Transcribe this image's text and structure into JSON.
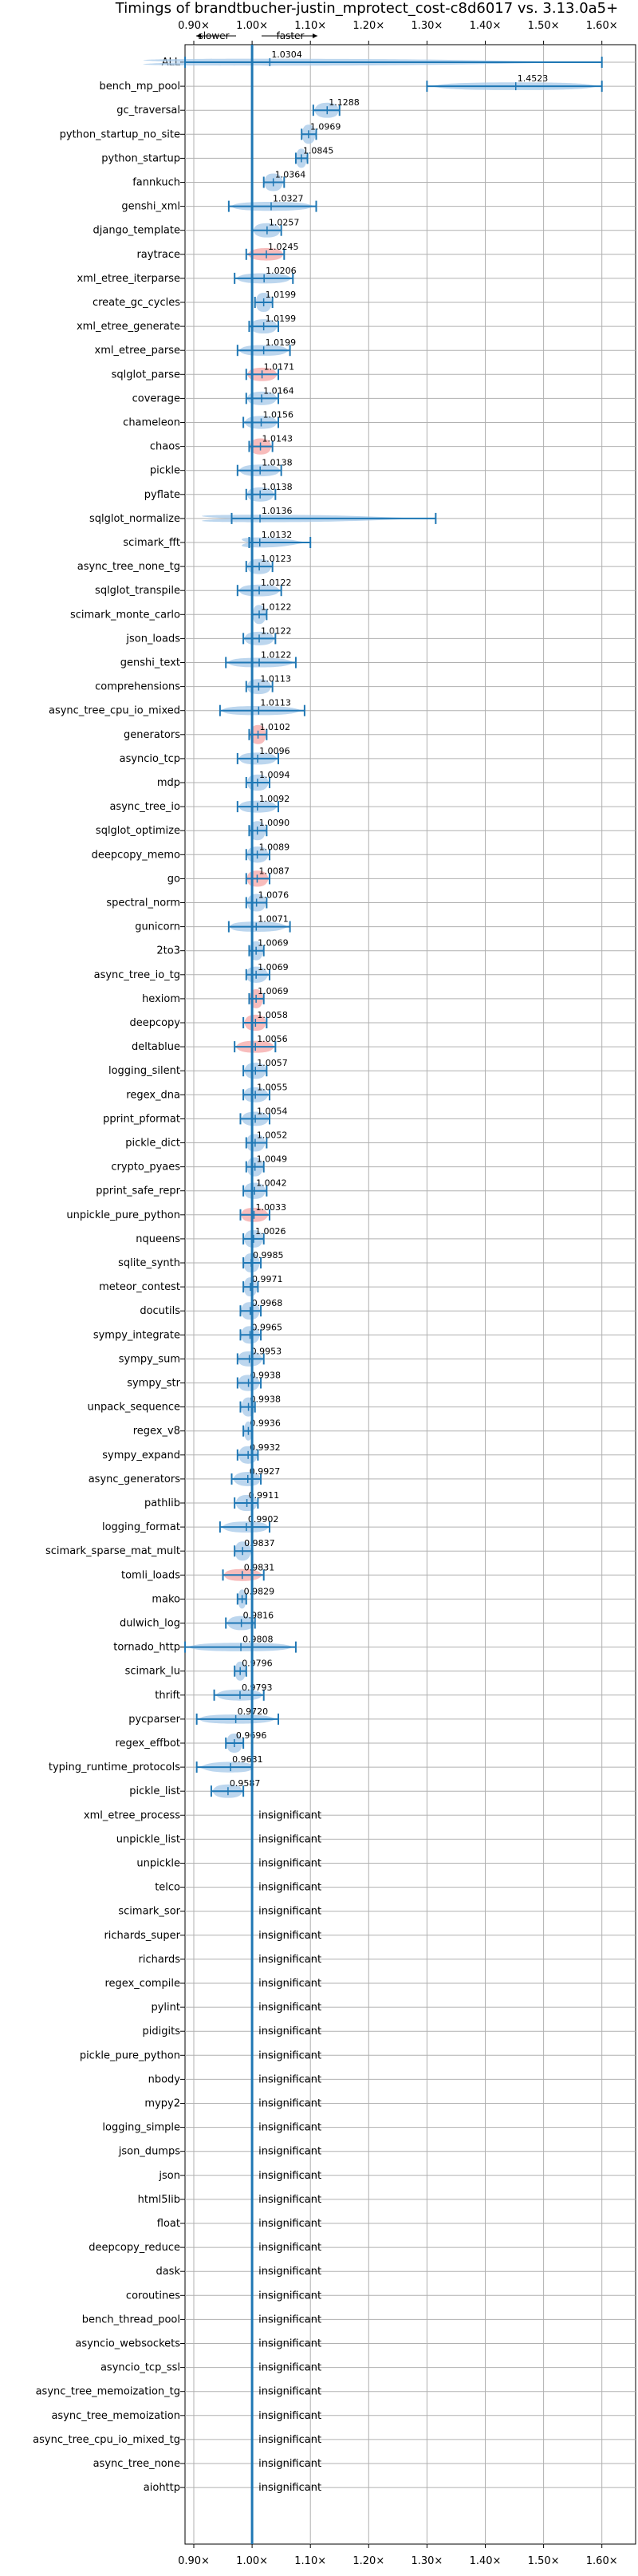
{
  "chart_data": {
    "type": "violin",
    "title": "Timings of brandtbucher-justin_mprotect_cost-c8d6017 vs. 3.13.0a5+",
    "direction_labels": {
      "slower": "slower",
      "faster": "faster"
    },
    "x_ticks": [
      {
        "value": 0.9,
        "label": "0.90×"
      },
      {
        "value": 1.0,
        "label": "1.00×"
      },
      {
        "value": 1.1,
        "label": "1.10×"
      },
      {
        "value": 1.2,
        "label": "1.20×"
      },
      {
        "value": 1.3,
        "label": "1.30×"
      },
      {
        "value": 1.4,
        "label": "1.40×"
      },
      {
        "value": 1.5,
        "label": "1.50×"
      },
      {
        "value": 1.6,
        "label": "1.60×"
      }
    ],
    "xlim": [
      0.88,
      1.62
    ],
    "reference_line": 1.0,
    "grid": true,
    "insignificant_label": "insignificant",
    "colors": {
      "line": "#1f77b4",
      "violin": "#a6c8e8",
      "violin_slower": "#f4a6a6",
      "grid": "#b0b0b0"
    },
    "benchmarks": [
      {
        "name": "ALL",
        "value": 1.0304,
        "label": "1.0304",
        "min": 0.885,
        "max": 1.6,
        "color": "blue"
      },
      {
        "name": "bench_mp_pool",
        "value": 1.4523,
        "label": "1.4523",
        "min": 1.3,
        "max": 1.6,
        "color": "blue"
      },
      {
        "name": "gc_traversal",
        "value": 1.1288,
        "label": "1.1288",
        "min": 1.105,
        "max": 1.15,
        "color": "blue"
      },
      {
        "name": "python_startup_no_site",
        "value": 1.0969,
        "label": "1.0969",
        "min": 1.085,
        "max": 1.11,
        "color": "blue"
      },
      {
        "name": "python_startup",
        "value": 1.0845,
        "label": "1.0845",
        "min": 1.075,
        "max": 1.095,
        "color": "blue"
      },
      {
        "name": "fannkuch",
        "value": 1.0364,
        "label": "1.0364",
        "min": 1.02,
        "max": 1.055,
        "color": "blue"
      },
      {
        "name": "genshi_xml",
        "value": 1.0327,
        "label": "1.0327",
        "min": 0.96,
        "max": 1.11,
        "color": "blue"
      },
      {
        "name": "django_template",
        "value": 1.0257,
        "label": "1.0257",
        "min": 1.0,
        "max": 1.05,
        "color": "blue"
      },
      {
        "name": "raytrace",
        "value": 1.0245,
        "label": "1.0245",
        "min": 0.99,
        "max": 1.055,
        "color": "red"
      },
      {
        "name": "xml_etree_iterparse",
        "value": 1.0206,
        "label": "1.0206",
        "min": 0.97,
        "max": 1.07,
        "color": "blue"
      },
      {
        "name": "create_gc_cycles",
        "value": 1.0199,
        "label": "1.0199",
        "min": 1.005,
        "max": 1.035,
        "color": "blue"
      },
      {
        "name": "xml_etree_generate",
        "value": 1.0199,
        "label": "1.0199",
        "min": 0.995,
        "max": 1.045,
        "color": "blue"
      },
      {
        "name": "xml_etree_parse",
        "value": 1.0199,
        "label": "1.0199",
        "min": 0.975,
        "max": 1.065,
        "color": "blue"
      },
      {
        "name": "sqlglot_parse",
        "value": 1.0171,
        "label": "1.0171",
        "min": 0.99,
        "max": 1.045,
        "color": "red"
      },
      {
        "name": "coverage",
        "value": 1.0164,
        "label": "1.0164",
        "min": 0.99,
        "max": 1.045,
        "color": "blue"
      },
      {
        "name": "chameleon",
        "value": 1.0156,
        "label": "1.0156",
        "min": 0.985,
        "max": 1.045,
        "color": "blue"
      },
      {
        "name": "chaos",
        "value": 1.0143,
        "label": "1.0143",
        "min": 0.995,
        "max": 1.035,
        "color": "red"
      },
      {
        "name": "pickle",
        "value": 1.0138,
        "label": "1.0138",
        "min": 0.975,
        "max": 1.05,
        "color": "blue"
      },
      {
        "name": "pyflate",
        "value": 1.0138,
        "label": "1.0138",
        "min": 0.99,
        "max": 1.04,
        "color": "blue"
      },
      {
        "name": "sqlglot_normalize",
        "value": 1.0136,
        "label": "1.0136",
        "min": 0.965,
        "max": 1.315,
        "color": "blue"
      },
      {
        "name": "scimark_fft",
        "value": 1.0132,
        "label": "1.0132",
        "min": 0.995,
        "max": 1.1,
        "color": "blue"
      },
      {
        "name": "async_tree_none_tg",
        "value": 1.0123,
        "label": "1.0123",
        "min": 0.99,
        "max": 1.035,
        "color": "blue"
      },
      {
        "name": "sqlglot_transpile",
        "value": 1.0122,
        "label": "1.0122",
        "min": 0.975,
        "max": 1.05,
        "color": "blue"
      },
      {
        "name": "scimark_monte_carlo",
        "value": 1.0122,
        "label": "1.0122",
        "min": 1.0,
        "max": 1.025,
        "color": "blue"
      },
      {
        "name": "json_loads",
        "value": 1.0122,
        "label": "1.0122",
        "min": 0.985,
        "max": 1.04,
        "color": "blue"
      },
      {
        "name": "genshi_text",
        "value": 1.0122,
        "label": "1.0122",
        "min": 0.955,
        "max": 1.075,
        "color": "blue"
      },
      {
        "name": "comprehensions",
        "value": 1.0113,
        "label": "1.0113",
        "min": 0.99,
        "max": 1.035,
        "color": "blue"
      },
      {
        "name": "async_tree_cpu_io_mixed",
        "value": 1.0113,
        "label": "1.0113",
        "min": 0.945,
        "max": 1.09,
        "color": "blue"
      },
      {
        "name": "generators",
        "value": 1.0102,
        "label": "1.0102",
        "min": 0.995,
        "max": 1.025,
        "color": "red"
      },
      {
        "name": "asyncio_tcp",
        "value": 1.0096,
        "label": "1.0096",
        "min": 0.975,
        "max": 1.045,
        "color": "blue"
      },
      {
        "name": "mdp",
        "value": 1.0094,
        "label": "1.0094",
        "min": 0.99,
        "max": 1.03,
        "color": "blue"
      },
      {
        "name": "async_tree_io",
        "value": 1.0092,
        "label": "1.0092",
        "min": 0.975,
        "max": 1.045,
        "color": "blue"
      },
      {
        "name": "sqlglot_optimize",
        "value": 1.009,
        "label": "1.0090",
        "min": 0.995,
        "max": 1.025,
        "color": "blue"
      },
      {
        "name": "deepcopy_memo",
        "value": 1.0089,
        "label": "1.0089",
        "min": 0.99,
        "max": 1.03,
        "color": "blue"
      },
      {
        "name": "go",
        "value": 1.0087,
        "label": "1.0087",
        "min": 0.99,
        "max": 1.03,
        "color": "red"
      },
      {
        "name": "spectral_norm",
        "value": 1.0076,
        "label": "1.0076",
        "min": 0.99,
        "max": 1.025,
        "color": "blue"
      },
      {
        "name": "gunicorn",
        "value": 1.0071,
        "label": "1.0071",
        "min": 0.96,
        "max": 1.065,
        "color": "blue"
      },
      {
        "name": "2to3",
        "value": 1.0069,
        "label": "1.0069",
        "min": 0.995,
        "max": 1.02,
        "color": "blue"
      },
      {
        "name": "async_tree_io_tg",
        "value": 1.0069,
        "label": "1.0069",
        "min": 0.99,
        "max": 1.03,
        "color": "blue"
      },
      {
        "name": "hexiom",
        "value": 1.0069,
        "label": "1.0069",
        "min": 0.995,
        "max": 1.02,
        "color": "red"
      },
      {
        "name": "deepcopy",
        "value": 1.0058,
        "label": "1.0058",
        "min": 0.985,
        "max": 1.025,
        "color": "red"
      },
      {
        "name": "deltablue",
        "value": 1.0056,
        "label": "1.0056",
        "min": 0.97,
        "max": 1.04,
        "color": "red"
      },
      {
        "name": "logging_silent",
        "value": 1.0057,
        "label": "1.0057",
        "min": 0.985,
        "max": 1.025,
        "color": "blue"
      },
      {
        "name": "regex_dna",
        "value": 1.0055,
        "label": "1.0055",
        "min": 0.985,
        "max": 1.03,
        "color": "blue"
      },
      {
        "name": "pprint_pformat",
        "value": 1.0054,
        "label": "1.0054",
        "min": 0.98,
        "max": 1.03,
        "color": "blue"
      },
      {
        "name": "pickle_dict",
        "value": 1.0052,
        "label": "1.0052",
        "min": 0.99,
        "max": 1.025,
        "color": "blue"
      },
      {
        "name": "crypto_pyaes",
        "value": 1.0049,
        "label": "1.0049",
        "min": 0.99,
        "max": 1.02,
        "color": "blue"
      },
      {
        "name": "pprint_safe_repr",
        "value": 1.0042,
        "label": "1.0042",
        "min": 0.985,
        "max": 1.025,
        "color": "blue"
      },
      {
        "name": "unpickle_pure_python",
        "value": 1.0033,
        "label": "1.0033",
        "min": 0.98,
        "max": 1.03,
        "color": "red"
      },
      {
        "name": "nqueens",
        "value": 1.0026,
        "label": "1.0026",
        "min": 0.985,
        "max": 1.02,
        "color": "blue"
      },
      {
        "name": "sqlite_synth",
        "value": 0.9985,
        "label": "0.9985",
        "min": 0.985,
        "max": 1.015,
        "color": "blue"
      },
      {
        "name": "meteor_contest",
        "value": 0.9971,
        "label": "0.9971",
        "min": 0.985,
        "max": 1.01,
        "color": "blue"
      },
      {
        "name": "docutils",
        "value": 0.9968,
        "label": "0.9968",
        "min": 0.98,
        "max": 1.015,
        "color": "blue"
      },
      {
        "name": "sympy_integrate",
        "value": 0.9965,
        "label": "0.9965",
        "min": 0.98,
        "max": 1.015,
        "color": "blue"
      },
      {
        "name": "sympy_sum",
        "value": 0.9953,
        "label": "0.9953",
        "min": 0.975,
        "max": 1.02,
        "color": "blue"
      },
      {
        "name": "sympy_str",
        "value": 0.9938,
        "label": "0.9938",
        "min": 0.975,
        "max": 1.015,
        "color": "blue"
      },
      {
        "name": "unpack_sequence",
        "value": 0.9938,
        "label": "0.9938",
        "min": 0.98,
        "max": 1.005,
        "color": "blue"
      },
      {
        "name": "regex_v8",
        "value": 0.9936,
        "label": "0.9936",
        "min": 0.985,
        "max": 1.0,
        "color": "blue"
      },
      {
        "name": "sympy_expand",
        "value": 0.9932,
        "label": "0.9932",
        "min": 0.975,
        "max": 1.01,
        "color": "blue"
      },
      {
        "name": "async_generators",
        "value": 0.9927,
        "label": "0.9927",
        "min": 0.965,
        "max": 1.015,
        "color": "blue"
      },
      {
        "name": "pathlib",
        "value": 0.9911,
        "label": "0.9911",
        "min": 0.97,
        "max": 1.01,
        "color": "blue"
      },
      {
        "name": "logging_format",
        "value": 0.9902,
        "label": "0.9902",
        "min": 0.945,
        "max": 1.03,
        "color": "blue"
      },
      {
        "name": "scimark_sparse_mat_mult",
        "value": 0.9837,
        "label": "0.9837",
        "min": 0.97,
        "max": 1.0,
        "color": "blue"
      },
      {
        "name": "tomli_loads",
        "value": 0.9831,
        "label": "0.9831",
        "min": 0.95,
        "max": 1.02,
        "color": "red"
      },
      {
        "name": "mako",
        "value": 0.9829,
        "label": "0.9829",
        "min": 0.975,
        "max": 0.99,
        "color": "blue"
      },
      {
        "name": "dulwich_log",
        "value": 0.9816,
        "label": "0.9816",
        "min": 0.955,
        "max": 1.005,
        "color": "blue"
      },
      {
        "name": "tornado_http",
        "value": 0.9808,
        "label": "0.9808",
        "min": 0.885,
        "max": 1.075,
        "color": "blue"
      },
      {
        "name": "scimark_lu",
        "value": 0.9796,
        "label": "0.9796",
        "min": 0.97,
        "max": 0.99,
        "color": "blue"
      },
      {
        "name": "thrift",
        "value": 0.9793,
        "label": "0.9793",
        "min": 0.935,
        "max": 1.02,
        "color": "blue"
      },
      {
        "name": "pycparser",
        "value": 0.972,
        "label": "0.9720",
        "min": 0.905,
        "max": 1.045,
        "color": "blue"
      },
      {
        "name": "regex_effbot",
        "value": 0.9696,
        "label": "0.9696",
        "min": 0.955,
        "max": 0.985,
        "color": "blue"
      },
      {
        "name": "typing_runtime_protocols",
        "value": 0.9631,
        "label": "0.9631",
        "min": 0.905,
        "max": 1.0,
        "color": "blue"
      },
      {
        "name": "pickle_list",
        "value": 0.9587,
        "label": "0.9587",
        "min": 0.93,
        "max": 0.985,
        "color": "blue"
      },
      {
        "name": "xml_etree_process",
        "value": null,
        "label": "",
        "min": null,
        "max": null,
        "color": "none"
      },
      {
        "name": "unpickle_list",
        "value": null,
        "label": "",
        "min": null,
        "max": null,
        "color": "none"
      },
      {
        "name": "unpickle",
        "value": null,
        "label": "",
        "min": null,
        "max": null,
        "color": "none"
      },
      {
        "name": "telco",
        "value": null,
        "label": "",
        "min": null,
        "max": null,
        "color": "none"
      },
      {
        "name": "scimark_sor",
        "value": null,
        "label": "",
        "min": null,
        "max": null,
        "color": "none"
      },
      {
        "name": "richards_super",
        "value": null,
        "label": "",
        "min": null,
        "max": null,
        "color": "none"
      },
      {
        "name": "richards",
        "value": null,
        "label": "",
        "min": null,
        "max": null,
        "color": "none"
      },
      {
        "name": "regex_compile",
        "value": null,
        "label": "",
        "min": null,
        "max": null,
        "color": "none"
      },
      {
        "name": "pylint",
        "value": null,
        "label": "",
        "min": null,
        "max": null,
        "color": "none"
      },
      {
        "name": "pidigits",
        "value": null,
        "label": "",
        "min": null,
        "max": null,
        "color": "none"
      },
      {
        "name": "pickle_pure_python",
        "value": null,
        "label": "",
        "min": null,
        "max": null,
        "color": "none"
      },
      {
        "name": "nbody",
        "value": null,
        "label": "",
        "min": null,
        "max": null,
        "color": "none"
      },
      {
        "name": "mypy2",
        "value": null,
        "label": "",
        "min": null,
        "max": null,
        "color": "none"
      },
      {
        "name": "logging_simple",
        "value": null,
        "label": "",
        "min": null,
        "max": null,
        "color": "none"
      },
      {
        "name": "json_dumps",
        "value": null,
        "label": "",
        "min": null,
        "max": null,
        "color": "none"
      },
      {
        "name": "json",
        "value": null,
        "label": "",
        "min": null,
        "max": null,
        "color": "none"
      },
      {
        "name": "html5lib",
        "value": null,
        "label": "",
        "min": null,
        "max": null,
        "color": "none"
      },
      {
        "name": "float",
        "value": null,
        "label": "",
        "min": null,
        "max": null,
        "color": "none"
      },
      {
        "name": "deepcopy_reduce",
        "value": null,
        "label": "",
        "min": null,
        "max": null,
        "color": "none"
      },
      {
        "name": "dask",
        "value": null,
        "label": "",
        "min": null,
        "max": null,
        "color": "none"
      },
      {
        "name": "coroutines",
        "value": null,
        "label": "",
        "min": null,
        "max": null,
        "color": "none"
      },
      {
        "name": "bench_thread_pool",
        "value": null,
        "label": "",
        "min": null,
        "max": null,
        "color": "none"
      },
      {
        "name": "asyncio_websockets",
        "value": null,
        "label": "",
        "min": null,
        "max": null,
        "color": "none"
      },
      {
        "name": "asyncio_tcp_ssl",
        "value": null,
        "label": "",
        "min": null,
        "max": null,
        "color": "none"
      },
      {
        "name": "async_tree_memoization_tg",
        "value": null,
        "label": "",
        "min": null,
        "max": null,
        "color": "none"
      },
      {
        "name": "async_tree_memoization",
        "value": null,
        "label": "",
        "min": null,
        "max": null,
        "color": "none"
      },
      {
        "name": "async_tree_cpu_io_mixed_tg",
        "value": null,
        "label": "",
        "min": null,
        "max": null,
        "color": "none"
      },
      {
        "name": "async_tree_none",
        "value": null,
        "label": "",
        "min": null,
        "max": null,
        "color": "none"
      },
      {
        "name": "aiohttp",
        "value": null,
        "label": "",
        "min": null,
        "max": null,
        "color": "none"
      }
    ]
  }
}
